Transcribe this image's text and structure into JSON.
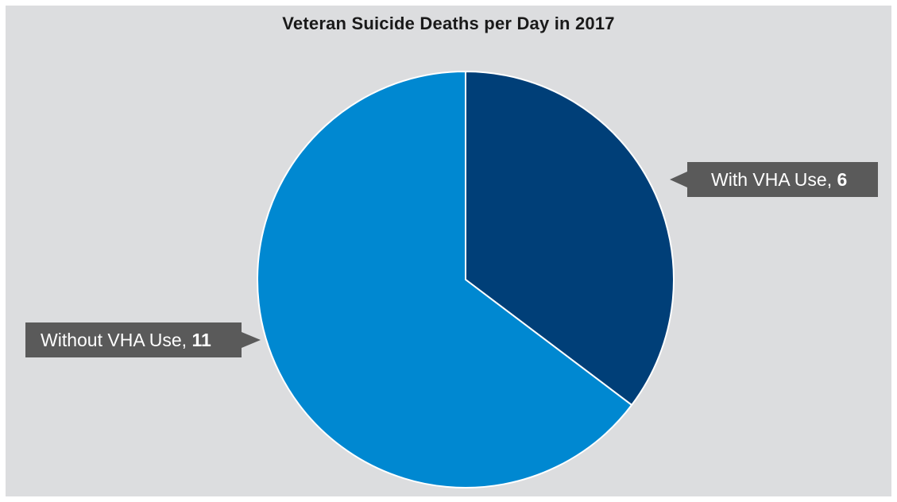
{
  "chart_data": {
    "type": "pie",
    "title": "Veteran Suicide Deaths per Day in 2017",
    "slices": [
      {
        "label": "With VHA Use",
        "value": 6,
        "color": "#003f78"
      },
      {
        "label": "Without VHA Use",
        "value": 11,
        "color": "#0088d1"
      }
    ],
    "start_angle": "12 o'clock",
    "direction": "clockwise",
    "legend": "none",
    "slice_border_color": "#ffffff"
  },
  "callouts": {
    "with": {
      "text": "With VHA Use, ",
      "value": "6"
    },
    "without": {
      "text": "Without VHA Use, ",
      "value": "11"
    }
  }
}
